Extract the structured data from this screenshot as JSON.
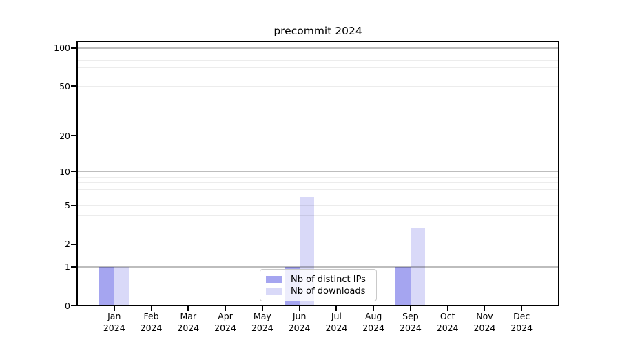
{
  "chart_data": {
    "type": "bar",
    "title": "precommit 2024",
    "categories": [
      "Jan",
      "Feb",
      "Mar",
      "Apr",
      "May",
      "Jun",
      "Jul",
      "Aug",
      "Sep",
      "Oct",
      "Nov",
      "Dec"
    ],
    "x_year_label": "2024",
    "series": [
      {
        "name": "Nb of distinct IPs",
        "slug": "distinct-ips",
        "color": "#a5a5f0",
        "values": [
          1,
          0,
          0,
          0,
          0,
          1,
          0,
          0,
          1,
          0,
          0,
          0
        ]
      },
      {
        "name": "Nb of downloads",
        "slug": "downloads",
        "color": "#d9d9f8",
        "values": [
          1,
          0,
          0,
          0,
          0,
          6,
          0,
          0,
          3,
          0,
          0,
          0
        ]
      }
    ],
    "xlabel": "",
    "ylabel": "",
    "y_scale": "log1p",
    "ylim": [
      0,
      113
    ],
    "y_max": 113,
    "y_ticks": [
      0,
      1,
      2,
      5,
      10,
      20,
      50,
      100
    ],
    "y_gridlines_major": [
      1,
      10,
      100
    ],
    "y_gridlines_minor": [
      2,
      3,
      4,
      5,
      6,
      7,
      8,
      9,
      20,
      30,
      40,
      50,
      60,
      70,
      80,
      90
    ],
    "grid": true,
    "legend_position": "lower center"
  }
}
